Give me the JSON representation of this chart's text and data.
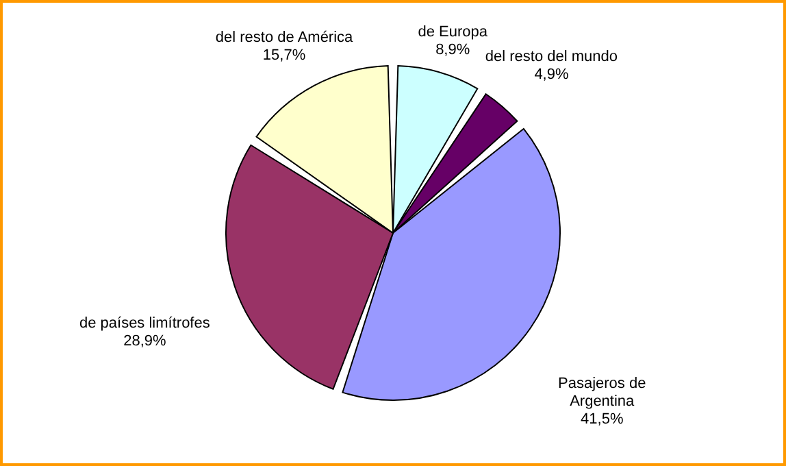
{
  "chart_data": {
    "type": "pie",
    "categories": [
      "de Europa",
      "del resto del mundo",
      "Pasajeros de Argentina",
      "de países limítrofes",
      "del resto de América"
    ],
    "values": [
      8.9,
      4.9,
      41.5,
      28.9,
      15.7
    ],
    "value_labels": [
      "8,9%",
      "4,9%",
      "41,5%",
      "28,9%",
      "15,7%"
    ],
    "colors": [
      "#ccffff",
      "#660066",
      "#9999ff",
      "#993366",
      "#ffffcc"
    ]
  }
}
